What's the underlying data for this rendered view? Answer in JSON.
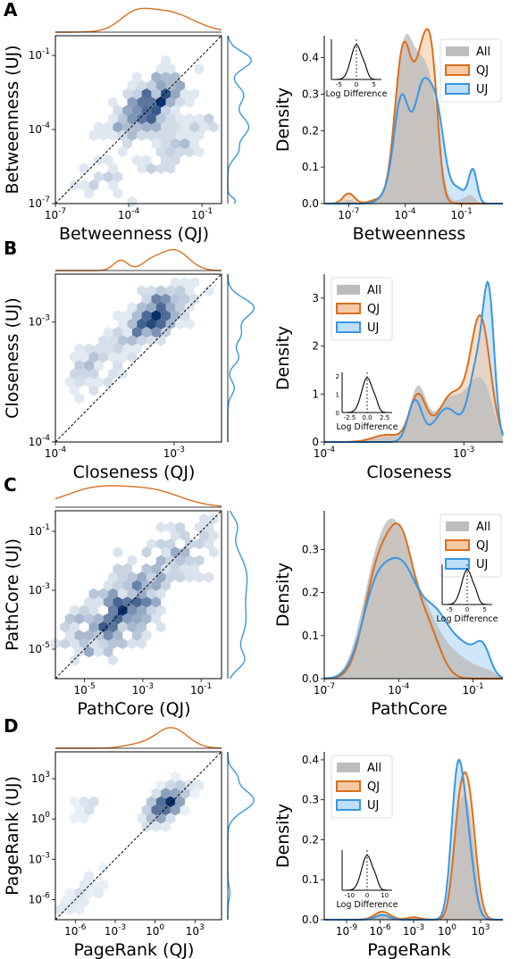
{
  "colors": {
    "qj": "#d96f1f",
    "uj": "#3a96e3",
    "all": "#bdbdbd",
    "hex_dark": "#08306b",
    "hex_light": "#deebf7"
  },
  "panels": [
    {
      "letter": "A",
      "scatter": {
        "xlabel": "Betweenness (QJ)",
        "ylabel": "Betweenness (UJ)",
        "xticks": [
          {
            "e": -7,
            "label": "10",
            "exp": "-7"
          },
          {
            "e": -4,
            "label": "10",
            "exp": "-4"
          },
          {
            "e": -1,
            "label": "10",
            "exp": "-1"
          }
        ],
        "yticks": [
          {
            "e": -7,
            "label": "10",
            "exp": "-7"
          },
          {
            "e": -4,
            "label": "10",
            "exp": "-4"
          },
          {
            "e": -1,
            "label": "10",
            "exp": "-1"
          }
        ],
        "range": [
          -7,
          -0.2
        ],
        "top_kde": {
          "color": "qj",
          "peaks": [
            [
              -2.4,
              1.0,
              1.1
            ],
            [
              -3.6,
              0.6,
              0.6
            ]
          ]
        },
        "right_kde": {
          "color": "uj",
          "peaks": [
            [
              -1.2,
              0.9,
              0.4
            ],
            [
              -2.6,
              0.7,
              0.5
            ],
            [
              -3.8,
              0.8,
              0.5
            ],
            [
              -4.8,
              0.4,
              0.4
            ],
            [
              -6.8,
              0.3,
              0.2
            ]
          ]
        }
      },
      "density": {
        "xlabel": "Betweenness",
        "ylabel": "Density",
        "xticks": [
          {
            "e": -7,
            "label": "10",
            "exp": "-7"
          },
          {
            "e": -4,
            "label": "10",
            "exp": "-4"
          },
          {
            "e": -1,
            "label": "10",
            "exp": "-1"
          }
        ],
        "yticks": [
          "0.0",
          "0.1",
          "0.2",
          "0.3",
          "0.4"
        ],
        "ylim": [
          0,
          0.46
        ],
        "legend": [
          "All",
          "QJ",
          "UJ"
        ],
        "legend_position": "top-right",
        "inset": {
          "xlabel": "Log Difference",
          "xticks": [
            "-5",
            "0",
            "5"
          ],
          "position": "top-left"
        }
      }
    },
    {
      "letter": "B",
      "scatter": {
        "xlabel": "Closeness (QJ)",
        "ylabel": "Closeness (UJ)",
        "xticks": [
          {
            "e": -4,
            "label": "10",
            "exp": "-4"
          },
          {
            "e": -3,
            "label": "10",
            "exp": "-3"
          }
        ],
        "yticks": [
          {
            "e": -4,
            "label": "10",
            "exp": "-4"
          },
          {
            "e": -3,
            "label": "10",
            "exp": "-3"
          }
        ],
        "range": [
          -4,
          -2.6
        ]
      },
      "density": {
        "xlabel": "Closeness",
        "ylabel": "Density",
        "xticks": [
          {
            "e": -4,
            "label": "10",
            "exp": "-4"
          },
          {
            "e": -3,
            "label": "10",
            "exp": "-3"
          }
        ],
        "yticks": [
          "0",
          "1",
          "2",
          "3"
        ],
        "ylim": [
          0,
          3.5
        ],
        "legend": [
          "All",
          "QJ",
          "UJ"
        ],
        "legend_position": "top-left",
        "inset": {
          "xlabel": "Log Difference",
          "xticks": [
            "-2.5",
            "0.0",
            "2.5"
          ],
          "yticks": [
            "0",
            "1",
            "2"
          ],
          "position": "bottom-left"
        }
      }
    },
    {
      "letter": "C",
      "scatter": {
        "xlabel": "PathCore (QJ)",
        "ylabel": "PathCore (UJ)",
        "xticks": [
          {
            "e": -5,
            "label": "10",
            "exp": "-5"
          },
          {
            "e": -3,
            "label": "10",
            "exp": "-3"
          },
          {
            "e": -1,
            "label": "10",
            "exp": "-1"
          }
        ],
        "yticks": [
          {
            "e": -5,
            "label": "10",
            "exp": "-5"
          },
          {
            "e": -3,
            "label": "10",
            "exp": "-3"
          },
          {
            "e": -1,
            "label": "10",
            "exp": "-1"
          }
        ],
        "range": [
          -6,
          -0.3
        ]
      },
      "density": {
        "xlabel": "PathCore",
        "ylabel": "Density",
        "xticks": [
          {
            "e": -7,
            "label": "10",
            "exp": "-7"
          },
          {
            "e": -4,
            "label": "10",
            "exp": "-4"
          },
          {
            "e": -1,
            "label": "10",
            "exp": "-1"
          }
        ],
        "yticks": [
          "0.0",
          "0.1",
          "0.2",
          "0.3"
        ],
        "ylim": [
          0,
          0.39
        ],
        "legend": [
          "All",
          "QJ",
          "UJ"
        ],
        "legend_position": "top-right",
        "inset": {
          "xlabel": "Log Difference",
          "xticks": [
            "-5",
            "0",
            "5"
          ],
          "position": "right"
        }
      }
    },
    {
      "letter": "D",
      "scatter": {
        "xlabel": "PageRank (QJ)",
        "ylabel": "PageRank (UJ)",
        "xticks": [
          {
            "e": -6,
            "label": "10",
            "exp": "-6"
          },
          {
            "e": -3,
            "label": "10",
            "exp": "-3"
          },
          {
            "e": 0,
            "label": "10",
            "exp": "0"
          },
          {
            "e": 3,
            "label": "10",
            "exp": "3"
          }
        ],
        "yticks": [
          {
            "e": -6,
            "label": "10",
            "exp": "-6"
          },
          {
            "e": -3,
            "label": "10",
            "exp": "-3"
          },
          {
            "e": 0,
            "label": "10",
            "exp": "0"
          },
          {
            "e": 3,
            "label": "10",
            "exp": "3"
          }
        ],
        "range": [
          -7.5,
          5
        ]
      },
      "density": {
        "xlabel": "PageRank",
        "ylabel": "Density",
        "xticks": [
          {
            "e": -9,
            "label": "10",
            "exp": "-9"
          },
          {
            "e": -6,
            "label": "10",
            "exp": "-6"
          },
          {
            "e": -3,
            "label": "10",
            "exp": "-3"
          },
          {
            "e": 0,
            "label": "10",
            "exp": "0"
          },
          {
            "e": 3,
            "label": "10",
            "exp": "3"
          }
        ],
        "yticks": [
          "0.0",
          "0.1",
          "0.2",
          "0.3",
          "0.4"
        ],
        "ylim": [
          0,
          0.42
        ],
        "legend": [
          "All",
          "QJ",
          "UJ"
        ],
        "legend_position": "top-left",
        "inset": {
          "xlabel": "Log Difference",
          "xticks": [
            "-10",
            "0",
            "10"
          ],
          "position": "bottom-left"
        }
      }
    }
  ],
  "chart_data": [
    {
      "type": "scatter",
      "title": "",
      "xlabel": "Betweenness (QJ)",
      "ylabel": "Betweenness (UJ)",
      "scale": "log",
      "xlim": [
        1e-07,
        0.6
      ],
      "ylim": [
        1e-07,
        0.6
      ],
      "note_diagonal": "y = x"
    },
    {
      "type": "area",
      "xlabel": "Betweenness",
      "ylabel": "Density",
      "scale": "log-x",
      "series": [
        {
          "name": "All",
          "x_log10": [
            -7.5,
            -7,
            -6,
            -5,
            -4.5,
            -4,
            -3.5,
            -3,
            -2.5,
            -2,
            -1.5,
            -1,
            -0.5,
            0
          ],
          "values": [
            0.0,
            0.01,
            0.0,
            0.02,
            0.3,
            0.41,
            0.35,
            0.38,
            0.3,
            0.1,
            0.02,
            0.01,
            0.02,
            0.0
          ]
        },
        {
          "name": "QJ",
          "x_log10": [
            -7.5,
            -7,
            -6,
            -5,
            -4.5,
            -4,
            -3.5,
            -3,
            -2.5,
            -2,
            -1.5,
            -1,
            -0.5,
            0
          ],
          "values": [
            0.0,
            0.03,
            0.01,
            0.03,
            0.32,
            0.44,
            0.42,
            0.44,
            0.35,
            0.08,
            0.0,
            0.0,
            0.0,
            0.0
          ]
        },
        {
          "name": "UJ",
          "x_log10": [
            -7.5,
            -7,
            -6,
            -5,
            -4.5,
            -4,
            -3.5,
            -3,
            -2.5,
            -2,
            -1.5,
            -1,
            -0.5,
            0
          ],
          "values": [
            0.0,
            0.0,
            0.0,
            0.02,
            0.27,
            0.3,
            0.27,
            0.34,
            0.32,
            0.15,
            0.05,
            0.03,
            0.09,
            0.0
          ]
        }
      ]
    },
    {
      "type": "scatter",
      "title": "",
      "xlabel": "Closeness (QJ)",
      "ylabel": "Closeness (UJ)",
      "scale": "log",
      "xlim": [
        0.0001,
        0.0025
      ],
      "ylim": [
        0.0001,
        0.0025
      ]
    },
    {
      "type": "area",
      "xlabel": "Closeness",
      "ylabel": "Density",
      "scale": "log-x",
      "series": [
        {
          "name": "All",
          "x_log10": [
            -4,
            -3.7,
            -3.5,
            -3.35,
            -3.25,
            -3.1,
            -2.95,
            -2.85,
            -2.75
          ],
          "values": [
            0.0,
            0.1,
            0.6,
            1.2,
            0.85,
            1.0,
            1.35,
            0.8,
            0.0
          ]
        },
        {
          "name": "QJ",
          "x_log10": [
            -4,
            -3.7,
            -3.5,
            -3.35,
            -3.25,
            -3.1,
            -2.95,
            -2.85,
            -2.75
          ],
          "values": [
            0.0,
            0.1,
            0.6,
            1.1,
            0.7,
            1.3,
            2.6,
            2.2,
            0.0
          ]
        },
        {
          "name": "UJ",
          "x_log10": [
            -4,
            -3.7,
            -3.5,
            -3.35,
            -3.25,
            -3.1,
            -2.95,
            -2.85,
            -2.75
          ],
          "values": [
            0.0,
            0.0,
            0.3,
            1.0,
            0.5,
            0.8,
            1.9,
            3.4,
            0.0
          ]
        }
      ]
    },
    {
      "type": "scatter",
      "title": "",
      "xlabel": "PathCore (QJ)",
      "ylabel": "PathCore (UJ)",
      "scale": "log",
      "xlim": [
        1e-06,
        0.5
      ],
      "ylim": [
        1e-06,
        0.5
      ]
    },
    {
      "type": "area",
      "xlabel": "PathCore",
      "ylabel": "Density",
      "scale": "log-x",
      "series": [
        {
          "name": "All",
          "x_log10": [
            -7,
            -6,
            -5,
            -4.5,
            -4,
            -3.5,
            -3,
            -2.5,
            -2,
            -1.5,
            -1,
            -0.5
          ],
          "values": [
            0.0,
            0.08,
            0.3,
            0.37,
            0.33,
            0.25,
            0.17,
            0.12,
            0.07,
            0.03,
            0.02,
            0.0
          ]
        },
        {
          "name": "QJ",
          "x_log10": [
            -7,
            -6,
            -5,
            -4.5,
            -4,
            -3.5,
            -3,
            -2.5,
            -2,
            -1.5,
            -1,
            -0.5
          ],
          "values": [
            0.0,
            0.05,
            0.28,
            0.36,
            0.37,
            0.3,
            0.15,
            0.05,
            0.02,
            0.0,
            0.0,
            0.0
          ]
        },
        {
          "name": "UJ",
          "x_log10": [
            -7,
            -6,
            -5,
            -4.5,
            -4,
            -3.5,
            -3,
            -2.5,
            -2,
            -1.5,
            -1,
            -0.5
          ],
          "values": [
            0.0,
            0.04,
            0.22,
            0.28,
            0.3,
            0.27,
            0.2,
            0.18,
            0.13,
            0.1,
            0.08,
            0.0
          ]
        }
      ]
    },
    {
      "type": "scatter",
      "title": "",
      "xlabel": "PageRank (QJ)",
      "ylabel": "PageRank (UJ)",
      "scale": "log",
      "xlim": [
        3e-08,
        100000.0
      ],
      "ylim": [
        3e-08,
        100000.0
      ]
    },
    {
      "type": "area",
      "xlabel": "PageRank",
      "ylabel": "Density",
      "scale": "log-x",
      "series": [
        {
          "name": "All",
          "x_log10": [
            -10,
            -7,
            -5.5,
            -4,
            -2,
            0,
            1,
            2,
            3,
            4.5
          ],
          "values": [
            0.0,
            0.0,
            0.02,
            0.0,
            0.01,
            0.05,
            0.3,
            0.34,
            0.1,
            0.0
          ]
        },
        {
          "name": "QJ",
          "x_log10": [
            -10,
            -7,
            -5.5,
            -4,
            -2,
            0,
            1,
            2,
            3,
            4.5
          ],
          "values": [
            0.0,
            0.0,
            0.02,
            0.0,
            0.01,
            0.05,
            0.3,
            0.36,
            0.12,
            0.0
          ]
        },
        {
          "name": "UJ",
          "x_log10": [
            -10,
            -7,
            -5.5,
            -4,
            -2,
            0,
            1,
            2,
            3,
            4.5
          ],
          "values": [
            0.0,
            0.0,
            0.01,
            0.0,
            0.0,
            0.06,
            0.39,
            0.3,
            0.05,
            0.0
          ]
        }
      ]
    }
  ]
}
